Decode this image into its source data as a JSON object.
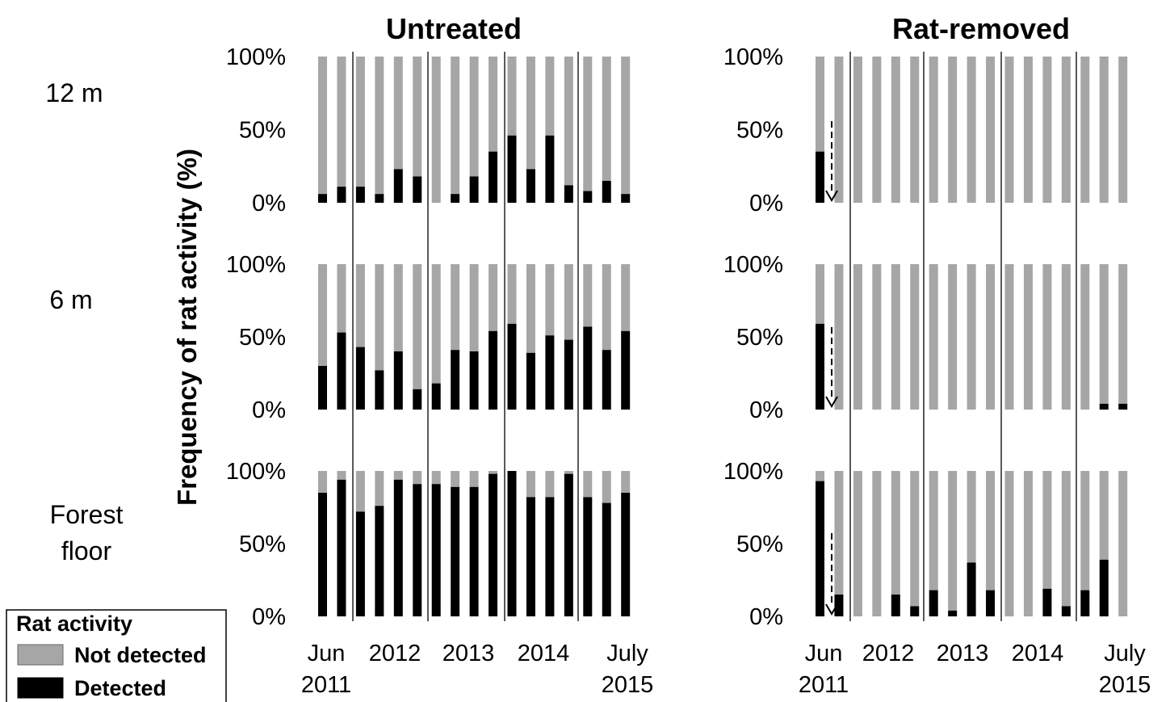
{
  "figure": {
    "ylabel": "Frequency of rat activity (%)",
    "row_labels": [
      [
        "12 m"
      ],
      [
        "6 m"
      ],
      [
        "Forest",
        "floor"
      ]
    ],
    "legend": {
      "title": "Rat activity",
      "items": [
        {
          "label": "Not detected",
          "color": "#a6a6a6"
        },
        {
          "label": "Detected",
          "color": "#000000"
        }
      ]
    },
    "x_tick_labels": [
      {
        "lines": [
          "Jun",
          "2011"
        ]
      },
      {
        "lines": [
          "2012"
        ]
      },
      {
        "lines": [
          "2013"
        ]
      },
      {
        "lines": [
          "2014"
        ]
      },
      {
        "lines": [
          "July",
          "2015"
        ]
      }
    ],
    "y_tick_labels": [
      "0%",
      "50%",
      "100%"
    ]
  },
  "chart_data": [
    {
      "type": "bar",
      "stacked": true,
      "panel": "Untreated",
      "title": "Untreated",
      "row": "12 m",
      "ylim": [
        0,
        100
      ],
      "series": [
        {
          "name": "Detected",
          "color": "#000000",
          "values": [
            6,
            11,
            11,
            6,
            23,
            18,
            0,
            6,
            18,
            35,
            46,
            23,
            46,
            12,
            8,
            15,
            6
          ]
        },
        {
          "name": "Not detected",
          "color": "#a6a6a6",
          "values": [
            94,
            89,
            89,
            94,
            77,
            82,
            100,
            94,
            82,
            65,
            54,
            77,
            54,
            88,
            92,
            85,
            94
          ]
        }
      ]
    },
    {
      "type": "bar",
      "stacked": true,
      "panel": "Untreated",
      "row": "6 m",
      "ylim": [
        0,
        100
      ],
      "series": [
        {
          "name": "Detected",
          "color": "#000000",
          "values": [
            30,
            53,
            43,
            27,
            40,
            14,
            18,
            41,
            40,
            54,
            59,
            39,
            51,
            48,
            57,
            41,
            54
          ]
        },
        {
          "name": "Not detected",
          "color": "#a6a6a6",
          "values": [
            70,
            47,
            57,
            73,
            60,
            86,
            82,
            59,
            60,
            46,
            41,
            61,
            49,
            52,
            43,
            59,
            46
          ]
        }
      ]
    },
    {
      "type": "bar",
      "stacked": true,
      "panel": "Untreated",
      "row": "Forest floor",
      "ylim": [
        0,
        100
      ],
      "series": [
        {
          "name": "Detected",
          "color": "#000000",
          "values": [
            85,
            94,
            72,
            76,
            94,
            91,
            91,
            89,
            89,
            98,
            100,
            82,
            82,
            98,
            82,
            78,
            85
          ]
        },
        {
          "name": "Not detected",
          "color": "#a6a6a6",
          "values": [
            15,
            6,
            28,
            24,
            6,
            9,
            9,
            11,
            11,
            2,
            0,
            18,
            18,
            2,
            18,
            22,
            15
          ]
        }
      ]
    },
    {
      "type": "bar",
      "stacked": true,
      "panel": "Rat-removed",
      "title": "Rat-removed",
      "row": "12 m",
      "ylim": [
        0,
        100
      ],
      "series": [
        {
          "name": "Detected",
          "color": "#000000",
          "values": [
            35,
            0,
            0,
            0,
            0,
            0,
            0,
            0,
            0,
            0,
            0,
            0,
            0,
            0,
            0,
            0,
            0
          ]
        },
        {
          "name": "Not detected",
          "color": "#a6a6a6",
          "values": [
            65,
            100,
            100,
            100,
            100,
            100,
            100,
            100,
            100,
            100,
            100,
            100,
            100,
            100,
            100,
            100,
            100
          ]
        }
      ]
    },
    {
      "type": "bar",
      "stacked": true,
      "panel": "Rat-removed",
      "row": "6 m",
      "ylim": [
        0,
        100
      ],
      "series": [
        {
          "name": "Detected",
          "color": "#000000",
          "values": [
            59,
            0,
            0,
            0,
            0,
            0,
            0,
            0,
            0,
            0,
            0,
            0,
            0,
            0,
            0,
            4,
            4
          ]
        },
        {
          "name": "Not detected",
          "color": "#a6a6a6",
          "values": [
            41,
            100,
            100,
            100,
            100,
            100,
            100,
            100,
            100,
            100,
            100,
            100,
            100,
            100,
            100,
            96,
            96
          ]
        }
      ]
    },
    {
      "type": "bar",
      "stacked": true,
      "panel": "Rat-removed",
      "row": "Forest floor",
      "ylim": [
        0,
        100
      ],
      "series": [
        {
          "name": "Detected",
          "color": "#000000",
          "values": [
            93,
            15,
            0,
            0,
            15,
            7,
            18,
            4,
            37,
            18,
            0,
            0,
            19,
            7,
            18,
            39,
            0
          ]
        },
        {
          "name": "Not detected",
          "color": "#a6a6a6",
          "values": [
            7,
            85,
            100,
            100,
            85,
            93,
            82,
            96,
            63,
            82,
            100,
            100,
            81,
            93,
            82,
            61,
            100
          ]
        }
      ]
    }
  ]
}
